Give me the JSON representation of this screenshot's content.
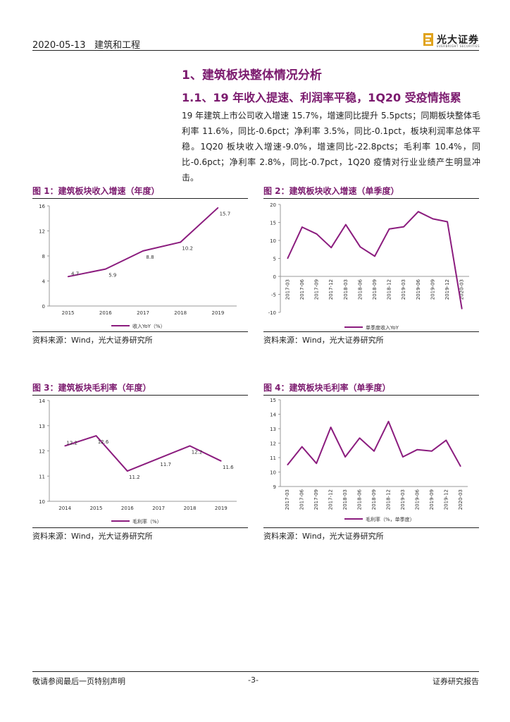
{
  "header": {
    "date": "2020-05-13",
    "category": "建筑和工程",
    "logo_cn": "光大证券",
    "logo_en": "EVERBRIGHT SECURITIES"
  },
  "section": {
    "h1": "1、建筑板块整体情况分析",
    "h2": "1.1、19 年收入提速、利润率平稳，1Q20 受疫情拖累",
    "paragraph": "19 年建筑上市公司收入增速 15.7%，增速同比提升 5.5pcts；同期板块整体毛利率 11.6%，同比-0.6pct；净利率 3.5%，同比-0.1pct，板块利润率总体平稳。1Q20 板块收入增速-9.0%，增速同比-22.8pcts；毛利率 10.4%，同比-0.6pct；净利率 2.8%，同比-0.7pct，1Q20 疫情对行业业绩产生明显冲击。"
  },
  "colors": {
    "accent": "#7b1a6e",
    "line": "#8b1c7e",
    "grid_axis": "#999999"
  },
  "figures": [
    {
      "title": "图 1：建筑板块收入增速（年度）",
      "source": "资料来源：Wind，光大证券研究所"
    },
    {
      "title": "图 2：建筑板块收入增速（单季度）",
      "source": "资料来源：Wind，光大证券研究所"
    },
    {
      "title": "图 3：建筑板块毛利率（年度）",
      "source": "资料来源：Wind，光大证券研究所"
    },
    {
      "title": "图 4：建筑板块毛利率（单季度）",
      "source": "资料来源：Wind，光大证券研究所"
    }
  ],
  "chart_data": [
    {
      "type": "line",
      "title": "图 1：建筑板块收入增速（年度）",
      "categories": [
        "2015",
        "2016",
        "2017",
        "2018",
        "2019"
      ],
      "values": [
        4.7,
        5.9,
        8.8,
        10.2,
        15.7
      ],
      "value_labels": [
        "4.7",
        "5.9",
        "8.8",
        "10.2",
        "15.7"
      ],
      "yticks": [
        "0",
        "4",
        "8",
        "12",
        "16"
      ],
      "ylim": [
        0,
        16
      ],
      "legend": "收入YoY（%）",
      "rotate_x": false
    },
    {
      "type": "line",
      "title": "图 2：建筑板块收入增速（单季度）",
      "categories": [
        "2017-03",
        "2017-06",
        "2017-09",
        "2017-12",
        "2018-03",
        "2018-06",
        "2018-09",
        "2018-12",
        "2019-03",
        "2019-06",
        "2019-09",
        "2019-12",
        "2020-03"
      ],
      "values": [
        5.0,
        13.7,
        11.8,
        8.0,
        14.4,
        8.2,
        5.6,
        13.2,
        13.8,
        18.0,
        16.0,
        15.2,
        -9.0
      ],
      "yticks": [
        "20",
        "15",
        "10",
        "5",
        "0",
        "-5",
        "-10"
      ],
      "ylim": [
        -10,
        20
      ],
      "legend": "单季度收入YoY",
      "rotate_x": true
    },
    {
      "type": "line",
      "title": "图 3：建筑板块毛利率（年度）",
      "categories": [
        "2014",
        "2015",
        "2016",
        "2017",
        "2018",
        "2019"
      ],
      "values": [
        12.2,
        12.6,
        11.2,
        11.7,
        12.2,
        11.6
      ],
      "value_labels": [
        "12.2",
        "12.6",
        "11.2",
        "11.7",
        "12.2",
        "11.6"
      ],
      "yticks": [
        "14",
        "13",
        "12",
        "11",
        "10"
      ],
      "ylim": [
        10,
        14
      ],
      "legend": "毛利率（%）",
      "rotate_x": false
    },
    {
      "type": "line",
      "title": "图 4：建筑板块毛利率（单季度）",
      "categories": [
        "2017-03",
        "2017-06",
        "2017-09",
        "2017-12",
        "2018-03",
        "2018-06",
        "2018-09",
        "2018-12",
        "2019-03",
        "2019-06",
        "2019-09",
        "2019-12",
        "2020-03"
      ],
      "values": [
        10.5,
        11.75,
        10.6,
        13.1,
        11.05,
        12.35,
        11.45,
        13.5,
        11.05,
        11.55,
        11.45,
        12.2,
        10.4
      ],
      "yticks": [
        "15",
        "14",
        "13",
        "12",
        "11",
        "10",
        "9"
      ],
      "ylim": [
        9,
        15
      ],
      "legend": "毛利率（%，单季度）",
      "rotate_x": true
    }
  ],
  "footer": {
    "left": "敬请参阅最后一页特别声明",
    "center": "-3-",
    "right": "证券研究报告"
  }
}
